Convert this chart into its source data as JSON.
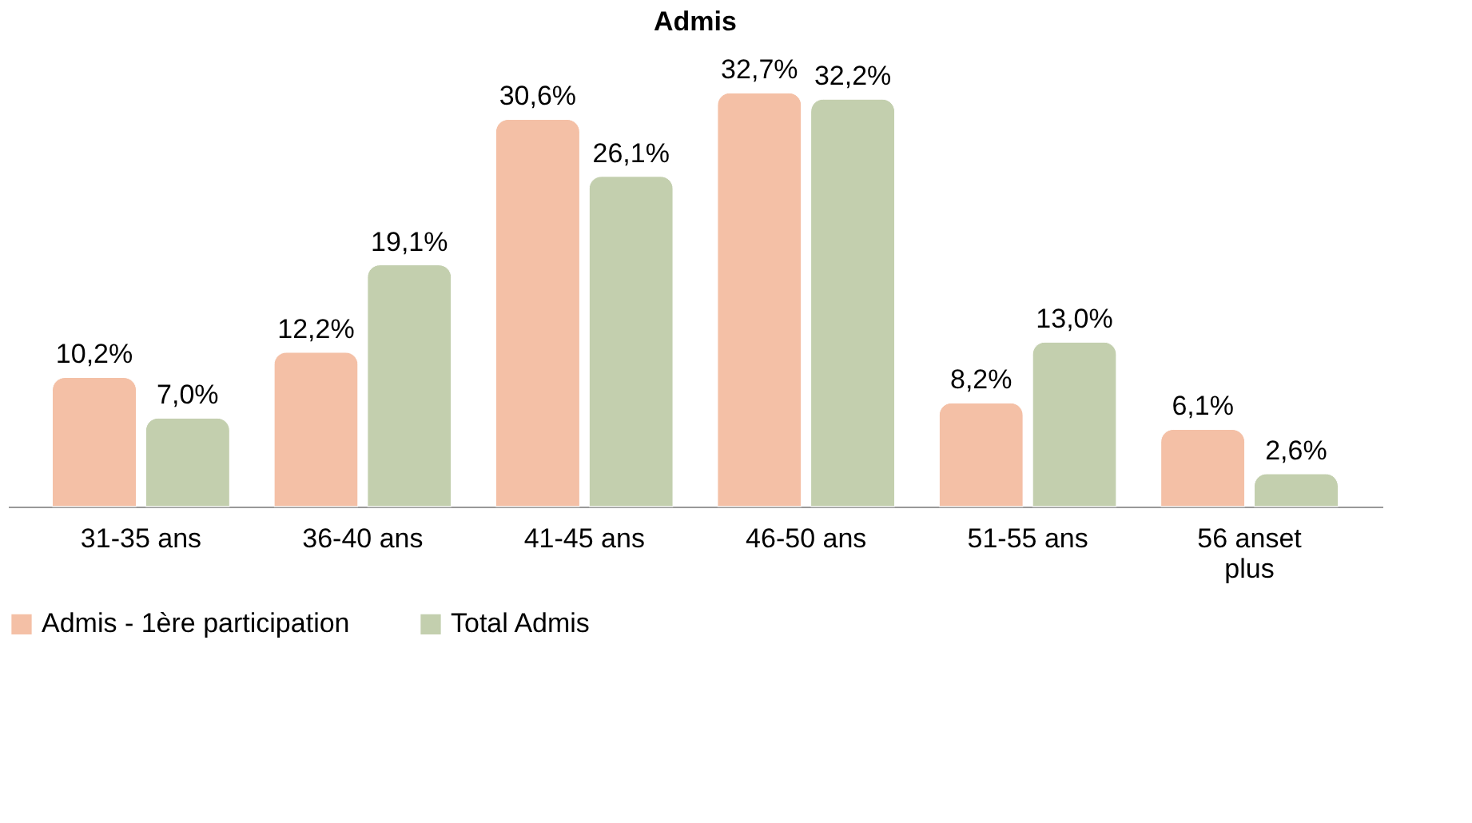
{
  "chart_data": {
    "type": "bar",
    "title": "Admis",
    "categories": [
      "31-35 ans",
      "36-40 ans",
      "41-45 ans",
      "46-50 ans",
      "51-55 ans",
      "56 anset plus"
    ],
    "series": [
      {
        "name": "Admis - 1ère participation",
        "color": "#f4c0a6",
        "values": [
          10.2,
          12.2,
          30.6,
          32.7,
          8.2,
          6.1
        ],
        "value_labels": [
          "10,2%",
          "12,2%",
          "30,6%",
          "32,7%",
          "8,2%",
          "6,1%"
        ]
      },
      {
        "name": "Total Admis",
        "color": "#c3cfae",
        "values": [
          7.0,
          19.1,
          26.1,
          32.2,
          13.0,
          2.6
        ],
        "value_labels": [
          "7,0%",
          "19,1%",
          "26,1%",
          "32,2%",
          "13,0%",
          "2,6%"
        ]
      }
    ],
    "legend": "bottom",
    "grid": false
  }
}
